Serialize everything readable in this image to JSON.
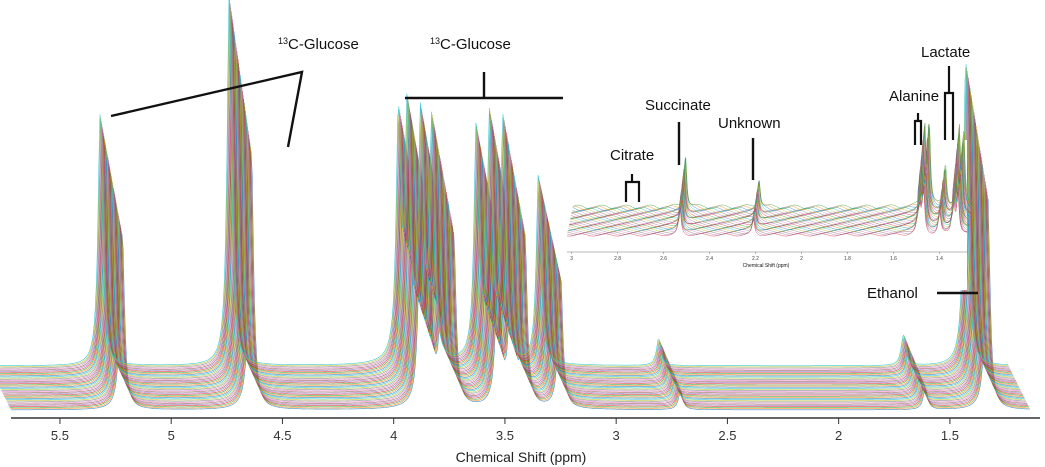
{
  "chart_data": [
    {
      "type": "line",
      "subtype": "stacked-nmr-spectra",
      "xlabel": "Chemical Shift (ppm)",
      "x_reversed": true,
      "xlim": [
        5.72,
        1.14
      ],
      "ticks": [
        5.5,
        5,
        4.5,
        4,
        3.5,
        3,
        2.5,
        2,
        1.5
      ],
      "tick_labels": [
        "5.5",
        "5",
        "4.5",
        "4",
        "3.5",
        "3",
        "2.5",
        "2",
        "1.5"
      ],
      "num_traces": 40,
      "annotations": [
        {
          "text": "13C-Glucose",
          "sup": "13",
          "rest": "C-Glucose",
          "shift": 4.65,
          "kind": "doublet-satellite"
        },
        {
          "text": "13C-Glucose",
          "sup": "13",
          "rest": "C-Glucose",
          "shift": 3.5,
          "kind": "multiplet-bracket"
        },
        {
          "text": "Ethanol",
          "shift": 1.2,
          "kind": "bar"
        }
      ],
      "peaks": [
        {
          "shift": 5.22,
          "rel_height": 0.66
        },
        {
          "shift": 4.64,
          "rel_height": 0.97
        },
        {
          "shift": 3.88,
          "rel_height": 0.62
        },
        {
          "shift": 3.84,
          "rel_height": 0.64
        },
        {
          "shift": 3.78,
          "rel_height": 0.62
        },
        {
          "shift": 3.73,
          "rel_height": 0.61
        },
        {
          "shift": 3.53,
          "rel_height": 0.61
        },
        {
          "shift": 3.47,
          "rel_height": 0.62
        },
        {
          "shift": 3.41,
          "rel_height": 0.62
        },
        {
          "shift": 3.25,
          "rel_height": 0.5
        },
        {
          "shift": 2.71,
          "rel_height": 0.07
        },
        {
          "shift": 1.61,
          "rel_height": 0.08
        },
        {
          "shift": 1.33,
          "rel_height": 0.8
        }
      ]
    },
    {
      "type": "line",
      "subtype": "inset-stacked-nmr-spectra",
      "xlabel": "Chemical Shift (ppm)",
      "x_reversed": true,
      "xlim": [
        3.02,
        1.28
      ],
      "ticks": [
        3,
        2.8,
        2.6,
        2.4,
        2.2,
        2,
        1.8,
        1.6,
        1.4
      ],
      "tick_labels": [
        "3",
        "2.8",
        "2.6",
        "2.4",
        "2.2",
        "2",
        "1.8",
        "1.6",
        "1.4"
      ],
      "num_traces": 30,
      "annotations": [
        {
          "text": "Citrate",
          "shift": 2.72,
          "kind": "pair"
        },
        {
          "text": "Succinate",
          "shift": 2.53,
          "kind": "bar"
        },
        {
          "text": "Unknown",
          "shift": 2.2,
          "kind": "bar"
        },
        {
          "text": "Alanine",
          "shift": 1.48,
          "kind": "doublet"
        },
        {
          "text": "Lactate",
          "shift": 1.33,
          "kind": "doublet"
        }
      ],
      "peaks": [
        {
          "shift": 2.53,
          "rel_height": 0.55
        },
        {
          "shift": 2.21,
          "rel_height": 0.3
        },
        {
          "shift": 1.49,
          "rel_height": 0.85
        },
        {
          "shift": 1.47,
          "rel_height": 0.85
        },
        {
          "shift": 1.4,
          "rel_height": 0.45
        },
        {
          "shift": 1.34,
          "rel_height": 0.8
        },
        {
          "shift": 1.32,
          "rel_height": 0.75
        }
      ]
    }
  ],
  "colors": {
    "trace_palette": [
      "#1f77b4",
      "#ff7f0e",
      "#2ca02c",
      "#d62728",
      "#9467bd",
      "#8c564b",
      "#e377c2",
      "#7f7f7f",
      "#bcbd22",
      "#17becf"
    ],
    "annotation": "#111111",
    "axis": "#333333"
  }
}
